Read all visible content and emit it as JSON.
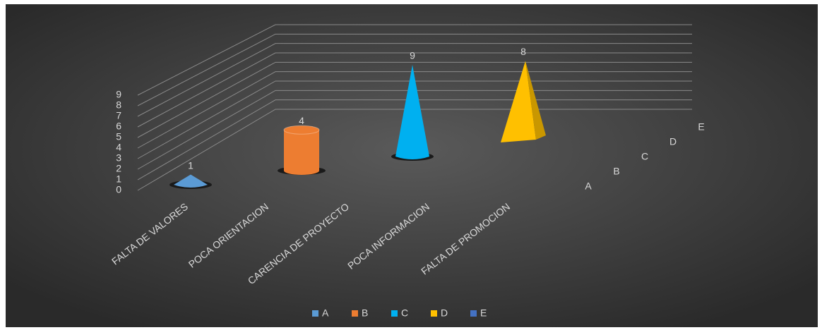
{
  "chart_data": {
    "type": "bar3d",
    "categories": [
      "FALTA DE VALORES",
      "POCA ORIENTACION",
      "CARENCIA DE PROYECTO",
      "POCA INFORMACION",
      "FALTA DE PROMOCION"
    ],
    "series": [
      {
        "name": "A",
        "color": "#5b9bd5",
        "shape": "cone",
        "values": [
          1,
          null,
          null,
          null,
          null
        ]
      },
      {
        "name": "B",
        "color": "#ed7d31",
        "shape": "cylinder",
        "values": [
          null,
          4,
          null,
          null,
          null
        ]
      },
      {
        "name": "C",
        "color": "#00b0f0",
        "shape": "cone",
        "values": [
          null,
          null,
          9,
          null,
          null
        ]
      },
      {
        "name": "D",
        "color": "#ffc000",
        "shape": "pyramid",
        "values": [
          null,
          null,
          null,
          8,
          null
        ]
      },
      {
        "name": "E",
        "color": "#4472c4",
        "shape": "cone",
        "values": [
          null,
          null,
          null,
          null,
          null
        ]
      }
    ],
    "ylim": [
      0,
      9
    ],
    "yticks": [
      0,
      1,
      2,
      3,
      4,
      5,
      6,
      7,
      8,
      9
    ],
    "grid": true,
    "legend": "bottom"
  }
}
